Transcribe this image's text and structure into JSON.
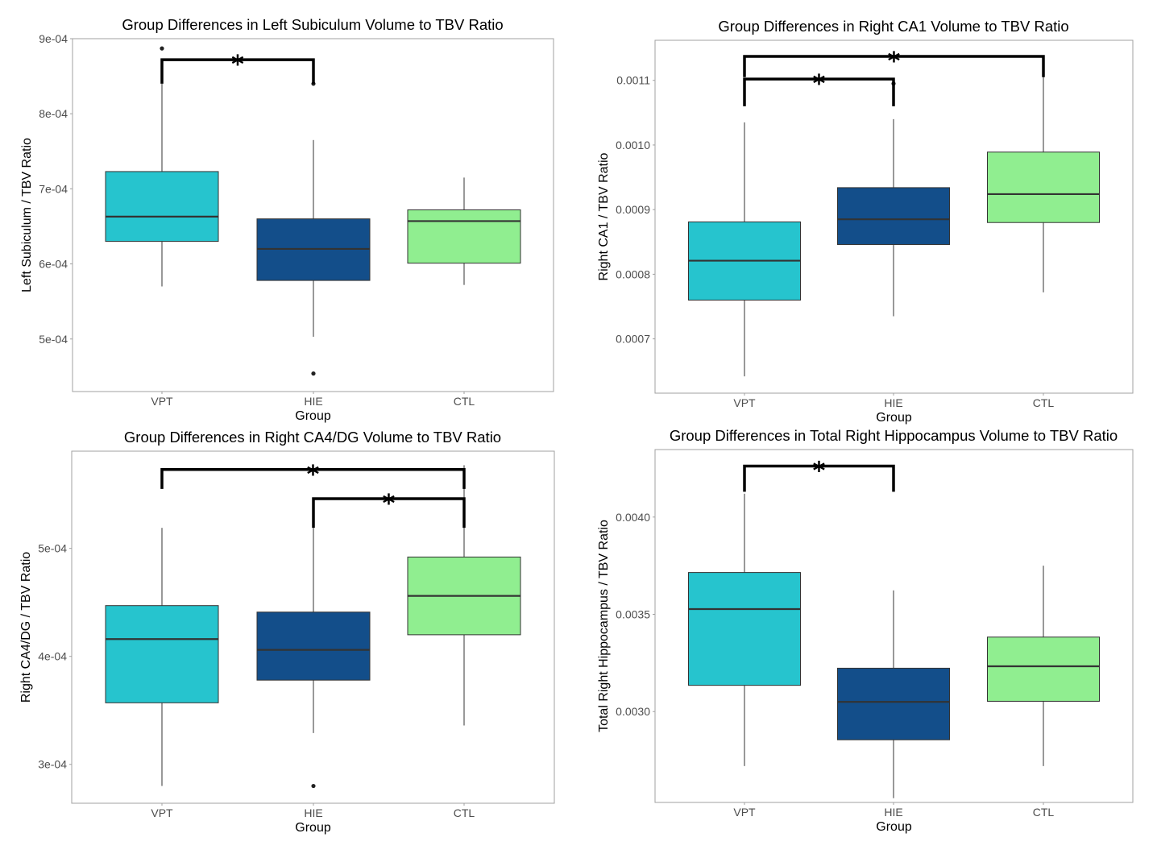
{
  "colors": {
    "VPT": "#26c4ce",
    "HIE": "#134e8a",
    "CTL": "#90ee90",
    "median": "#333333",
    "whisker": "#555555",
    "panel_border": "#a0a0a0",
    "bracket": "#000000"
  },
  "chart_data": [
    {
      "type": "box",
      "title": "Group Differences in Left Subiculum Volume to TBV Ratio",
      "xlabel": "Group",
      "ylabel": "Left Subiculum / TBV Ratio",
      "categories": [
        "VPT",
        "HIE",
        "CTL"
      ],
      "ylim": [
        0.00043,
        0.0009
      ],
      "yticks": [
        0.0005,
        0.0006,
        0.0007,
        0.0008,
        0.0009
      ],
      "ytick_labels": [
        "5e-04",
        "6e-04",
        "7e-04",
        "8e-04",
        "9e-04"
      ],
      "grid": false,
      "boxes": [
        {
          "group": "VPT",
          "whisker_low": 0.00057,
          "q1": 0.00063,
          "median": 0.000663,
          "q3": 0.000723,
          "whisker_high": 0.00084,
          "outliers": [
            0.000887
          ]
        },
        {
          "group": "HIE",
          "whisker_low": 0.000503,
          "q1": 0.000578,
          "median": 0.00062,
          "q3": 0.00066,
          "whisker_high": 0.000765,
          "outliers": [
            0.00084,
            0.000454
          ]
        },
        {
          "group": "CTL",
          "whisker_low": 0.000572,
          "q1": 0.000601,
          "median": 0.000657,
          "q3": 0.000672,
          "whisker_high": 0.000715,
          "outliers": []
        }
      ],
      "significance": [
        {
          "from": "VPT",
          "to": "HIE",
          "y": 0.000872,
          "drop": 0.00084,
          "label": "*"
        }
      ]
    },
    {
      "type": "box",
      "title": "Group Differences in Right CA1 Volume to TBV Ratio",
      "xlabel": "Group",
      "ylabel": "Right CA1 / TBV Ratio",
      "categories": [
        "VPT",
        "HIE",
        "CTL"
      ],
      "ylim": [
        0.000616,
        0.001162
      ],
      "yticks": [
        0.0007,
        0.0008,
        0.0009,
        0.001,
        0.0011
      ],
      "ytick_labels": [
        "0.0007",
        "0.0008",
        "0.0009",
        "0.0010",
        "0.0011"
      ],
      "grid": false,
      "boxes": [
        {
          "group": "VPT",
          "whisker_low": 0.000642,
          "q1": 0.00076,
          "median": 0.000821,
          "q3": 0.000881,
          "whisker_high": 0.001035,
          "outliers": []
        },
        {
          "group": "HIE",
          "whisker_low": 0.000735,
          "q1": 0.000846,
          "median": 0.000885,
          "q3": 0.000934,
          "whisker_high": 0.00104,
          "outliers": [
            0.001095
          ]
        },
        {
          "group": "CTL",
          "whisker_low": 0.000772,
          "q1": 0.00088,
          "median": 0.000924,
          "q3": 0.000989,
          "whisker_high": 0.001128,
          "outliers": []
        }
      ],
      "significance": [
        {
          "from": "VPT",
          "to": "CTL",
          "y": 0.001137,
          "drop": 0.001105,
          "label": "*"
        },
        {
          "from": "VPT",
          "to": "HIE",
          "y": 0.001102,
          "drop": 0.00106,
          "label": "*"
        }
      ]
    },
    {
      "type": "box",
      "title": "Group Differences in Right CA4/DG Volume to TBV Ratio",
      "xlabel": "Group",
      "ylabel": "Right CA4/DG / TBV Ratio",
      "categories": [
        "VPT",
        "HIE",
        "CTL"
      ],
      "ylim": [
        0.000264,
        0.00059
      ],
      "yticks": [
        0.0003,
        0.0004,
        0.0005
      ],
      "ytick_labels": [
        "3e-04",
        "4e-04",
        "5e-04"
      ],
      "grid": false,
      "boxes": [
        {
          "group": "VPT",
          "whisker_low": 0.00028,
          "q1": 0.000357,
          "median": 0.000416,
          "q3": 0.000447,
          "whisker_high": 0.000519,
          "outliers": []
        },
        {
          "group": "HIE",
          "whisker_low": 0.000329,
          "q1": 0.000378,
          "median": 0.000406,
          "q3": 0.000441,
          "whisker_high": 0.000519,
          "outliers": [
            0.00028
          ]
        },
        {
          "group": "CTL",
          "whisker_low": 0.000336,
          "q1": 0.00042,
          "median": 0.000456,
          "q3": 0.000492,
          "whisker_high": 0.000577,
          "outliers": []
        }
      ],
      "significance": [
        {
          "from": "VPT",
          "to": "CTL",
          "y": 0.000573,
          "drop": 0.000555,
          "label": "*"
        },
        {
          "from": "HIE",
          "to": "CTL",
          "y": 0.000546,
          "drop": 0.000519,
          "label": "*"
        }
      ]
    },
    {
      "type": "box",
      "title": "Group Differences in Total Right Hippocampus Volume to TBV Ratio",
      "xlabel": "Group",
      "ylabel": "Total Right Hippocampus / TBV Ratio",
      "categories": [
        "VPT",
        "HIE",
        "CTL"
      ],
      "ylim": [
        0.002533,
        0.004347
      ],
      "yticks": [
        0.003,
        0.0035,
        0.004
      ],
      "ytick_labels": [
        "0.0030",
        "0.0035",
        "0.0040"
      ],
      "grid": false,
      "boxes": [
        {
          "group": "VPT",
          "whisker_low": 0.00272,
          "q1": 0.003135,
          "median": 0.003527,
          "q3": 0.003715,
          "whisker_high": 0.00412,
          "outliers": []
        },
        {
          "group": "HIE",
          "whisker_low": 0.002555,
          "q1": 0.002855,
          "median": 0.00305,
          "q3": 0.003223,
          "whisker_high": 0.003623,
          "outliers": []
        },
        {
          "group": "CTL",
          "whisker_low": 0.00272,
          "q1": 0.003053,
          "median": 0.003233,
          "q3": 0.003383,
          "whisker_high": 0.00375,
          "outliers": []
        }
      ],
      "significance": [
        {
          "from": "VPT",
          "to": "HIE",
          "y": 0.004262,
          "drop": 0.00413,
          "label": "*"
        }
      ]
    }
  ]
}
